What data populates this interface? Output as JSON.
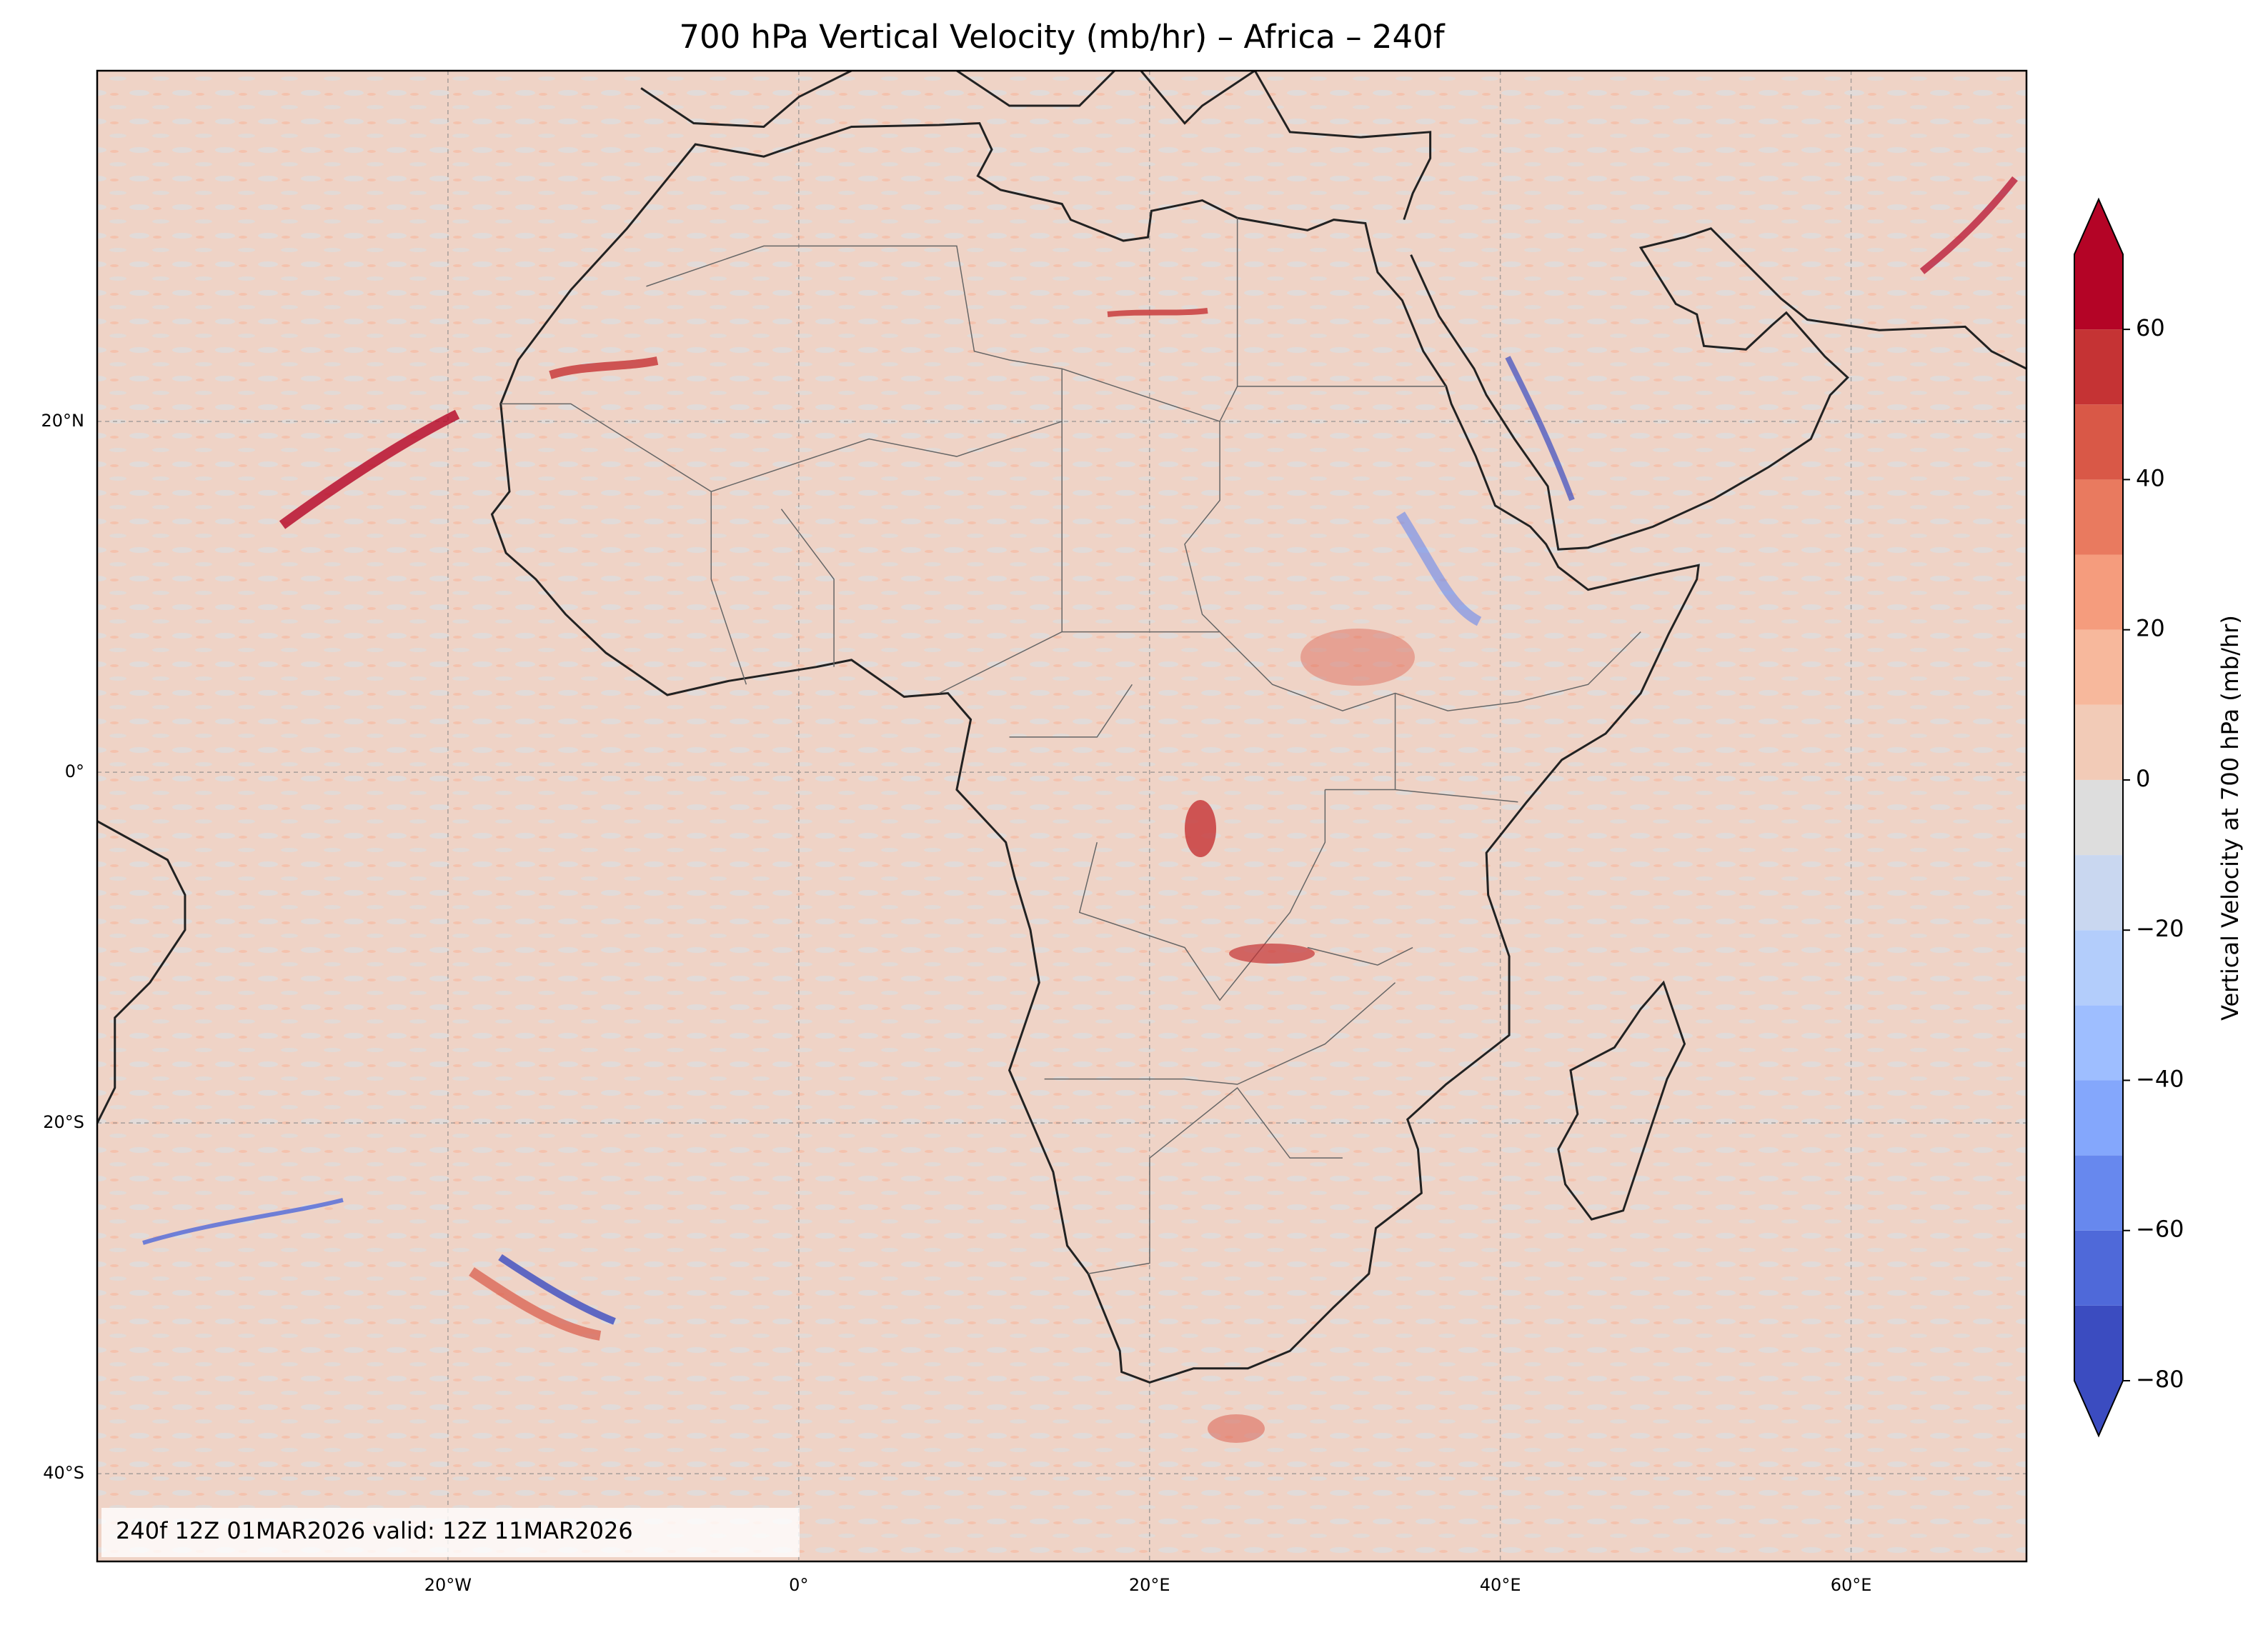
{
  "chart_data": {
    "type": "map",
    "title": "700 hPa Vertical Velocity (mb/hr) – Africa – 240f",
    "annotation": "240f 12Z 01MAR2026 valid: 12Z 11MAR2026",
    "xlim": [
      -40,
      70
    ],
    "ylim": [
      -45,
      40
    ],
    "xticks": [
      {
        "value": -20,
        "label": "20°W"
      },
      {
        "value": 0,
        "label": "0°"
      },
      {
        "value": 20,
        "label": "20°E"
      },
      {
        "value": 40,
        "label": "40°E"
      },
      {
        "value": 60,
        "label": "60°E"
      }
    ],
    "yticks": [
      {
        "value": -40,
        "label": "40°S"
      },
      {
        "value": -20,
        "label": "20°S"
      },
      {
        "value": 0,
        "label": "0°"
      },
      {
        "value": 20,
        "label": "20°N"
      }
    ],
    "grid": true,
    "colorbar": {
      "label": "Vertical Velocity at 700 hPa (mb/hr)",
      "levels": [
        -80,
        -70,
        -60,
        -50,
        -40,
        -30,
        -20,
        -10,
        0,
        10,
        20,
        30,
        40,
        50,
        60,
        70
      ],
      "colors": [
        "#3b4cc0",
        "#4f69d9",
        "#6788ee",
        "#84a7fc",
        "#9ebeff",
        "#b3cdfb",
        "#c9d7f0",
        "#dddddd",
        "#f2cbb7",
        "#f7b89c",
        "#f59c7d",
        "#e97a5f",
        "#d95847",
        "#c53334",
        "#b40426"
      ],
      "under_color": "#3b4cc0",
      "over_color": "#b40426",
      "ticks": [
        {
          "value": -80,
          "label": "−80"
        },
        {
          "value": -60,
          "label": "−60"
        },
        {
          "value": -40,
          "label": "−40"
        },
        {
          "value": -20,
          "label": "−20"
        },
        0,
        20,
        40,
        60
      ]
    }
  }
}
